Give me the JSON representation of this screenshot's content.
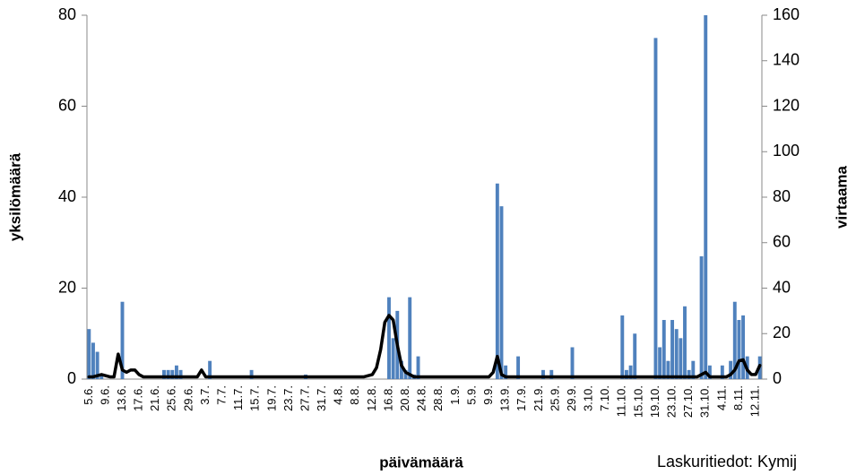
{
  "chart_data": {
    "type": "bar",
    "xlabel": "päivämäärä",
    "ylabel": "yksilömäärä",
    "y2label": "virtaama",
    "source": "Laskuritiedot: Kymij",
    "categories": [
      "5.6.",
      null,
      null,
      null,
      "9.6.",
      null,
      null,
      null,
      "13.6.",
      null,
      null,
      null,
      "17.6.",
      null,
      null,
      null,
      "21.6.",
      null,
      null,
      null,
      "25.6.",
      null,
      null,
      null,
      "29.6.",
      null,
      null,
      null,
      "3.7.",
      null,
      null,
      null,
      "7.7.",
      null,
      null,
      null,
      "11.7.",
      null,
      null,
      null,
      "15.7.",
      null,
      null,
      null,
      "19.7.",
      null,
      null,
      null,
      "23.7.",
      null,
      null,
      null,
      "27.7.",
      null,
      null,
      null,
      "31.7.",
      null,
      null,
      null,
      "4.8.",
      null,
      null,
      null,
      "8.8.",
      null,
      null,
      null,
      "12.8.",
      null,
      null,
      null,
      "16.8.",
      null,
      null,
      null,
      "20.8.",
      null,
      null,
      null,
      "24.8.",
      null,
      null,
      null,
      "28.8.",
      null,
      null,
      null,
      "1.9.",
      null,
      null,
      null,
      "5.9.",
      null,
      null,
      null,
      "9.9.",
      null,
      null,
      null,
      "13.9.",
      null,
      null,
      null,
      "17.9.",
      null,
      null,
      null,
      "21.9.",
      null,
      null,
      null,
      "25.9.",
      null,
      null,
      null,
      "29.9.",
      null,
      null,
      null,
      "3.10.",
      null,
      null,
      null,
      "7.10.",
      null,
      null,
      null,
      "11.10.",
      null,
      null,
      null,
      "15.10.",
      null,
      null,
      null,
      "19.10.",
      null,
      null,
      null,
      "23.10.",
      null,
      null,
      null,
      "27.10.",
      null,
      null,
      null,
      "31.10.",
      null,
      null,
      null,
      "4.11.",
      null,
      null,
      null,
      "8.11.",
      null,
      null,
      null,
      "12.11.",
      null
    ],
    "series": [
      {
        "color": "#4f81bd",
        "values": [
          11,
          8,
          6,
          1,
          0,
          0,
          0,
          0,
          17,
          0,
          0,
          0,
          0,
          0,
          0,
          0,
          0,
          0,
          2,
          2,
          2,
          3,
          2,
          0,
          0,
          0,
          0,
          0,
          0,
          4,
          0,
          0,
          0,
          0,
          0,
          0,
          0,
          0,
          0,
          2,
          0,
          0,
          0,
          0,
          0,
          0,
          0,
          0,
          0,
          0,
          0,
          0,
          1,
          0,
          0,
          0,
          0,
          0,
          0,
          0,
          0,
          0,
          0,
          0,
          0,
          0,
          0,
          0,
          0,
          0,
          0,
          0,
          18,
          9,
          15,
          4,
          2,
          18,
          1,
          5,
          0,
          0,
          0,
          0,
          0,
          0,
          0,
          0,
          0,
          0,
          0,
          0,
          0,
          0,
          0,
          0,
          0,
          0,
          43,
          38,
          3,
          0,
          0,
          5,
          0,
          0,
          0,
          0,
          0,
          2,
          0,
          2,
          0,
          0,
          0,
          0,
          7,
          0,
          0,
          0,
          0,
          0,
          0,
          0,
          0,
          0,
          0,
          0,
          14,
          2,
          3,
          10,
          0,
          0,
          0,
          0,
          75,
          7,
          13,
          4,
          13,
          11,
          9,
          16,
          2,
          4,
          0,
          27,
          80,
          3,
          0,
          0,
          3,
          0,
          4,
          17,
          13,
          14,
          5,
          0,
          0,
          5
        ]
      },
      {
        "type": "line",
        "axis": "y2",
        "color": "#000000",
        "values": [
          1,
          1,
          1.5,
          2,
          1.5,
          1,
          1,
          11,
          4,
          3,
          4,
          4,
          2,
          1,
          1,
          1,
          1,
          1,
          1,
          1,
          1,
          1,
          1,
          1,
          1,
          1,
          1,
          4,
          1,
          1,
          1,
          1,
          1,
          1,
          1,
          1,
          1,
          1,
          1,
          1,
          1,
          1,
          1,
          1,
          1,
          1,
          1,
          1,
          1,
          1,
          1,
          1,
          1,
          1,
          1,
          1,
          1,
          1,
          1,
          1,
          1,
          1,
          1,
          1,
          1,
          1,
          1,
          1.5,
          2,
          5,
          13,
          25,
          28,
          26,
          15,
          6,
          3,
          2,
          1,
          1,
          1,
          1,
          1,
          1,
          1,
          1,
          1,
          1,
          1,
          1,
          1,
          1,
          1,
          1,
          1,
          1,
          1,
          3,
          10,
          2,
          1,
          1,
          1,
          1,
          1,
          1,
          1,
          1,
          1,
          1,
          1,
          1,
          1,
          1,
          1,
          1,
          1,
          1,
          1,
          1,
          1,
          1,
          1,
          1,
          1,
          1,
          1,
          1,
          1,
          1,
          1,
          1,
          1,
          1,
          1,
          1,
          1,
          1,
          1,
          1,
          1,
          1,
          1,
          1,
          1,
          1,
          1,
          2,
          3,
          1,
          1,
          1,
          1,
          1,
          2,
          4,
          8,
          8.5,
          4,
          2,
          2,
          6
        ]
      }
    ],
    "ylim": [
      0,
      80
    ],
    "yticks": [
      0,
      20,
      40,
      60,
      80
    ],
    "y2lim": [
      0,
      160
    ],
    "y2ticks": [
      0,
      20,
      40,
      60,
      80,
      100,
      120,
      140,
      160
    ]
  }
}
